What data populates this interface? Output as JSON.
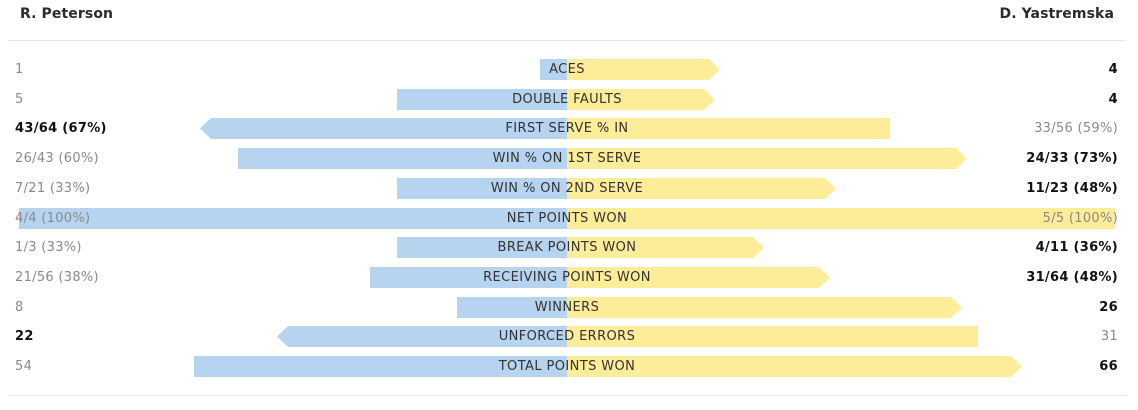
{
  "players": {
    "left": "R. Peterson",
    "right": "D. Yastremska"
  },
  "colors": {
    "left_bar": "#b6d3f0",
    "right_bar": "#fdec98"
  },
  "chart_data": {
    "type": "bar",
    "orientation": "horizontal-butterfly",
    "series": [
      {
        "name": "R. Peterson",
        "color": "#b6d3f0"
      },
      {
        "name": "D. Yastremska",
        "color": "#fdec98"
      }
    ],
    "rows": [
      {
        "label": "ACES",
        "left": "1",
        "right": "4",
        "left_frac": 0.05,
        "right_frac": 0.28,
        "winner": "right"
      },
      {
        "label": "DOUBLE FAULTS",
        "left": "5",
        "right": "4",
        "left_frac": 0.31,
        "right_frac": 0.27,
        "winner": "right"
      },
      {
        "label": "FIRST SERVE % IN",
        "left": "43/64 (67%)",
        "right": "33/56 (59%)",
        "left_frac": 0.67,
        "right_frac": 0.59,
        "winner": "left"
      },
      {
        "label": "WIN % ON 1ST SERVE",
        "left": "26/43 (60%)",
        "right": "24/33 (73%)",
        "left_frac": 0.6,
        "right_frac": 0.73,
        "winner": "right"
      },
      {
        "label": "WIN % ON 2ND SERVE",
        "left": "7/21 (33%)",
        "right": "11/23 (48%)",
        "left_frac": 0.31,
        "right_frac": 0.49,
        "winner": "right"
      },
      {
        "label": "NET POINTS WON",
        "left": "4/4 (100%)",
        "right": "5/5 (100%)",
        "left_frac": 1.0,
        "right_frac": 1.0,
        "winner": "none"
      },
      {
        "label": "BREAK POINTS WON",
        "left": "1/3 (33%)",
        "right": "4/11 (36%)",
        "left_frac": 0.31,
        "right_frac": 0.36,
        "winner": "right"
      },
      {
        "label": "RECEIVING POINTS WON",
        "left": "21/56 (38%)",
        "right": "31/64 (48%)",
        "left_frac": 0.36,
        "right_frac": 0.48,
        "winner": "right"
      },
      {
        "label": "WINNERS",
        "left": "8",
        "right": "26",
        "left_frac": 0.2,
        "right_frac": 0.72,
        "winner": "right"
      },
      {
        "label": "UNFORCED ERRORS",
        "left": "22",
        "right": "31",
        "left_frac": 0.53,
        "right_frac": 0.75,
        "winner": "left"
      },
      {
        "label": "TOTAL POINTS WON",
        "left": "54",
        "right": "66",
        "left_frac": 0.68,
        "right_frac": 0.83,
        "winner": "right"
      }
    ]
  }
}
